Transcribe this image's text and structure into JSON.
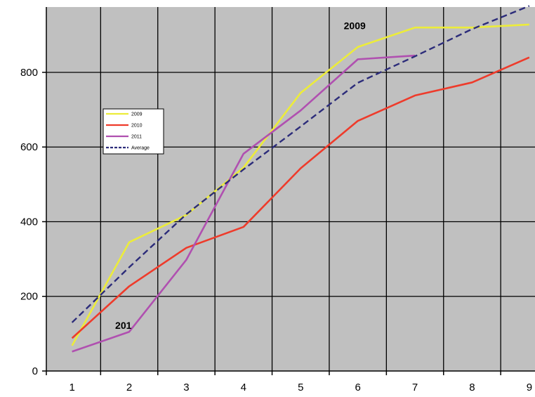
{
  "chart_data": {
    "type": "line",
    "x": [
      1,
      2,
      3,
      4,
      5,
      6,
      7,
      8,
      9
    ],
    "xlim": [
      0.55,
      9.1
    ],
    "ylim": [
      0,
      975
    ],
    "yticks": [
      0,
      200,
      400,
      600,
      800
    ],
    "xticks": [
      1,
      2,
      3,
      4,
      5,
      6,
      7,
      8,
      9
    ],
    "grid": true,
    "legend_position": "left-center",
    "background_color": "#c0c0c0",
    "series": [
      {
        "name": "2009",
        "color": "#ecec3a",
        "dash": false,
        "values": [
          68,
          345,
          418,
          545,
          745,
          868,
          920,
          920,
          928
        ]
      },
      {
        "name": "2010",
        "color": "#ee3b2b",
        "dash": false,
        "values": [
          88,
          227,
          330,
          386,
          543,
          670,
          738,
          773,
          840
        ]
      },
      {
        "name": "2011",
        "color": "#b050b0",
        "dash": false,
        "values": [
          52,
          105,
          298,
          582,
          698,
          835,
          845,
          null,
          null
        ]
      },
      {
        "name": "Average",
        "color": "#2c2c7a",
        "dash": true,
        "values": [
          130,
          278,
          420,
          540,
          655,
          772,
          843,
          916,
          978
        ]
      }
    ],
    "annotations": [
      {
        "text": "2009",
        "x": 6,
        "y": 925
      },
      {
        "text": "201",
        "x": 2,
        "y": 122
      }
    ]
  }
}
